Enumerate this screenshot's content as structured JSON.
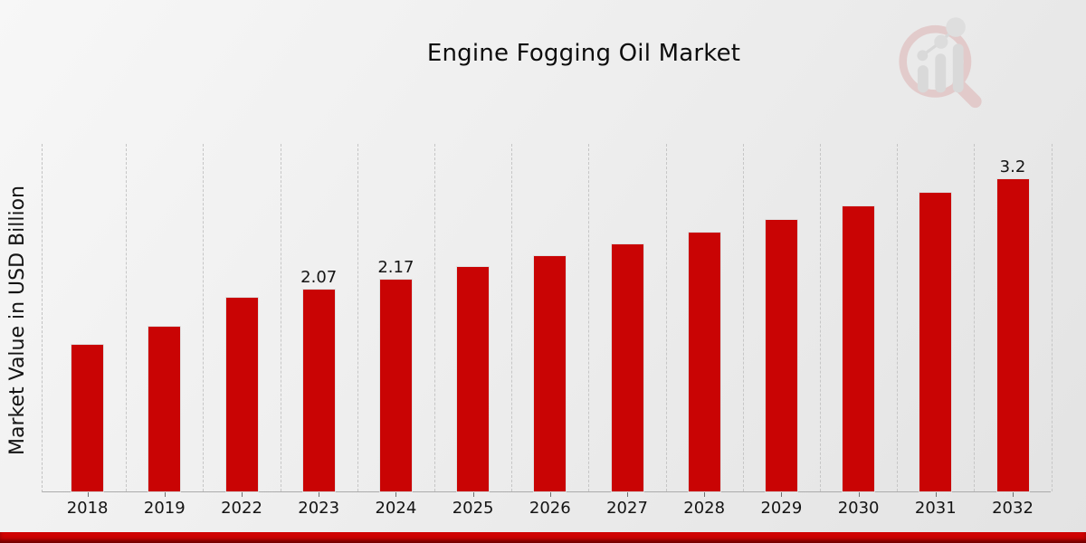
{
  "chart_data": {
    "type": "bar",
    "title": "Engine Fogging Oil Market",
    "xlabel": "",
    "ylabel": "Market Value in USD Billion",
    "categories": [
      "2018",
      "2019",
      "2022",
      "2023",
      "2024",
      "2025",
      "2026",
      "2027",
      "2028",
      "2029",
      "2030",
      "2031",
      "2032"
    ],
    "values": [
      1.5,
      1.69,
      1.98,
      2.07,
      2.17,
      2.3,
      2.41,
      2.53,
      2.65,
      2.78,
      2.92,
      3.06,
      3.2
    ],
    "point_labels": [
      "",
      "",
      "",
      "2.07",
      "2.17",
      "",
      "",
      "",
      "",
      "",
      "",
      "",
      "3.2"
    ],
    "ylim": [
      0,
      3.56
    ],
    "grid": "vertical-dashed",
    "legend": "none",
    "bar_color": "#c90404"
  },
  "branding": {
    "logo_icon": "magnifier-growth-chart-logo",
    "footer_color_top": "#d00303",
    "footer_color_bottom": "#9c0000"
  }
}
